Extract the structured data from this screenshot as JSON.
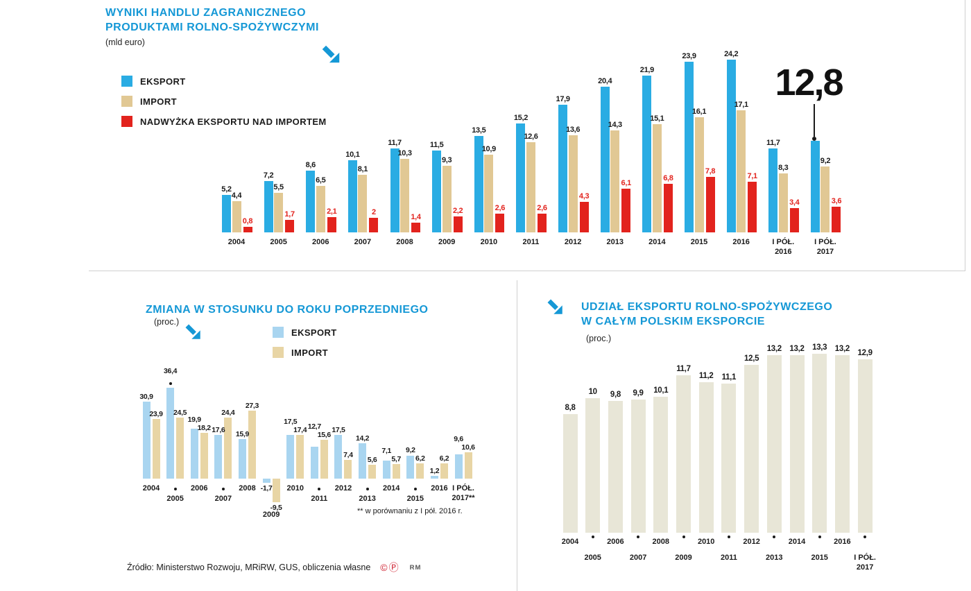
{
  "colors": {
    "title_blue": "#1598d6",
    "text_dark": "#1a1a1a",
    "export_blue": "#2aace3",
    "import_tan": "#e1c894",
    "surplus_red": "#e2231d",
    "export_light_blue": "#a9d5f0",
    "import_light_tan": "#e8d5a5",
    "share_beige": "#e8e6d7",
    "divider_gray": "#cfcfcf"
  },
  "top_chart": {
    "title_line1": "WYNIKI HANDLU ZAGRANICZNEGO",
    "title_line2": "PRODUKTAMI ROLNO-SPOŻYWCZYMI",
    "unit_label": "(mld euro)",
    "annotation_value": "12,8"
  },
  "left_chart": {
    "title": "ZMIANA W STOSUNKU DO ROKU POPRZEDNIEGO",
    "unit_label": "(proc.)",
    "footnote": "** w porównaniu z I pół. 2016 r."
  },
  "right_chart": {
    "title_line1": "UDZIAŁ EKSPORTU ROLNO-SPOŻYWCZEGO",
    "title_line2": "W CAŁYM POLSKIM EKSPORCIE",
    "unit_label": "(proc.)"
  },
  "source": {
    "text": "Źródło: Ministerstwo Rozwoju, MRiRW, GUS, obliczenia własne",
    "marks": "©Ⓟ",
    "brand": "RM"
  },
  "chart_data": [
    {
      "type": "bar",
      "title": "WYNIKI HANDLU ZAGRANICZNEGO PRODUKTAMI ROLNO-SPOŻYWCZYMI",
      "unit": "mld euro",
      "grid": false,
      "legend_position": "left",
      "ylim": [
        0,
        26
      ],
      "categories": [
        "2004",
        "2005",
        "2006",
        "2007",
        "2008",
        "2009",
        "2010",
        "2011",
        "2012",
        "2013",
        "2014",
        "2015",
        "2016",
        "I PÓŁ.\n2016",
        "I PÓŁ.\n2017"
      ],
      "series": [
        {
          "name": "EKSPORT",
          "key": "eksport",
          "color": "#2aace3",
          "values": [
            5.2,
            7.2,
            8.6,
            10.1,
            11.7,
            11.5,
            13.5,
            15.2,
            17.9,
            20.4,
            21.9,
            23.9,
            24.2,
            11.7,
            12.8
          ]
        },
        {
          "name": "IMPORT",
          "key": "import",
          "color": "#e1c894",
          "values": [
            4.4,
            5.5,
            6.5,
            8.1,
            10.3,
            9.3,
            10.9,
            12.6,
            13.6,
            14.3,
            15.1,
            16.1,
            17.1,
            8.3,
            9.2
          ]
        },
        {
          "name": "NADWYŻKA EKSPORTU NAD IMPORTEM",
          "key": "nadwyzka",
          "color": "#e2231d",
          "values": [
            0.8,
            1.7,
            2.1,
            2,
            1.4,
            2.2,
            2.6,
            2.6,
            4.3,
            6.1,
            6.8,
            7.8,
            7.1,
            3.4,
            3.6
          ]
        }
      ],
      "annotation": {
        "text": "12,8",
        "series": "EKSPORT",
        "category": "I PÓŁ. 2017",
        "hidden_label_index": 14
      }
    },
    {
      "type": "bar",
      "title": "ZMIANA W STOSUNKU DO ROKU POPRZEDNIEGO",
      "unit": "proc.",
      "grid": false,
      "legend_position": "top",
      "ylim": [
        -12,
        40
      ],
      "categories": [
        "2004",
        "2005",
        "2006",
        "2007",
        "2008",
        "2009",
        "2010",
        "2011",
        "2012",
        "2013",
        "2014",
        "2015",
        "2016",
        "I PÓŁ.\n2017**"
      ],
      "series": [
        {
          "name": "EKSPORT",
          "key": "eksport",
          "color": "#a9d5f0",
          "values": [
            30.9,
            36.4,
            19.9,
            17.6,
            15.9,
            -1.7,
            17.5,
            12.7,
            17.5,
            14.2,
            7.1,
            9.2,
            1.2,
            9.6
          ]
        },
        {
          "name": "IMPORT",
          "key": "import",
          "color": "#e8d5a5",
          "values": [
            23.9,
            24.5,
            18.2,
            24.4,
            27.3,
            -9.5,
            17.4,
            15.6,
            7.4,
            5.6,
            5.7,
            6.2,
            6.2,
            10.6
          ]
        }
      ],
      "footnote": "** w porównaniu z I pół. 2016 r."
    },
    {
      "type": "bar",
      "title": "UDZIAŁ EKSPORTU ROLNO-SPOŻYWCZEGO W CAŁYM POLSKIM EKSPORCIE",
      "unit": "proc.",
      "grid": false,
      "ylim": [
        0,
        14
      ],
      "categories": [
        "2004",
        "2005",
        "2006",
        "2007",
        "2008",
        "2009",
        "2010",
        "2011",
        "2012",
        "2013",
        "2014",
        "2015",
        "2016",
        "I PÓŁ.\n2017"
      ],
      "series": [
        {
          "name": "UDZIAŁ EKSPORTU",
          "key": "udzial",
          "color": "#e8e6d7",
          "values": [
            8.8,
            10,
            9.8,
            9.9,
            10.1,
            11.7,
            11.2,
            11.1,
            12.5,
            13.2,
            13.2,
            13.3,
            13.2,
            12.9
          ]
        }
      ]
    }
  ]
}
